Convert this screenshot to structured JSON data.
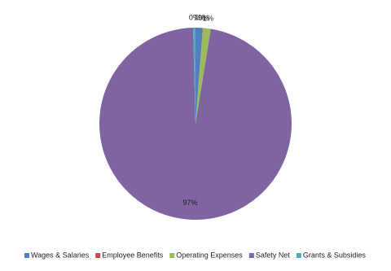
{
  "chart_data": {
    "type": "pie",
    "categories": [
      "Wages & Salaries",
      "Employee Benefits",
      "Operating Expenses",
      "Safety Net",
      "Grants & Subsidies"
    ],
    "values": [
      1.2,
      0.05,
      1.3,
      97,
      0.4
    ],
    "value_labels": [
      "1%",
      "0%",
      "1%",
      "97%",
      "0%"
    ],
    "colors": [
      "#4f81bd",
      "#c0504d",
      "#9bbb59",
      "#8064a2",
      "#4bacc6"
    ],
    "legend": "bottom"
  }
}
